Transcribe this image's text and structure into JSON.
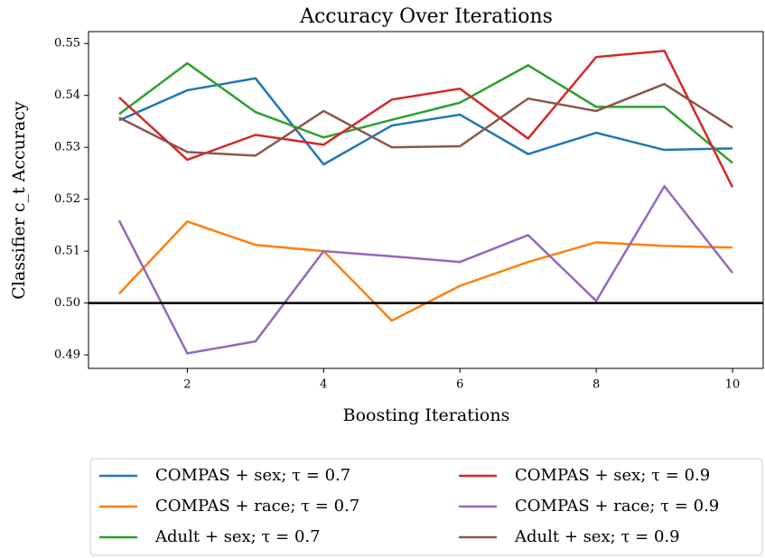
{
  "chart_data": {
    "type": "line",
    "title": "Accuracy Over Iterations",
    "xlabel": "Boosting Iterations",
    "ylabel": "Classifier c_t Accuracy",
    "x": [
      1,
      2,
      3,
      4,
      5,
      6,
      7,
      8,
      9,
      10
    ],
    "xlim": [
      0.55,
      10.45
    ],
    "xticks": [
      2,
      4,
      6,
      8,
      10
    ],
    "ylim": [
      0.4874,
      0.5523
    ],
    "yticks": [
      0.49,
      {
        "value": 0.5,
        "label": "0.50"
      },
      0.51,
      0.52,
      0.53,
      0.54,
      0.55
    ],
    "hline": 0.5,
    "hline_color": "#000000",
    "legend": "below",
    "grid": false,
    "series": [
      {
        "name": "COMPAS + sex; τ = 0.7",
        "color": "#1f77b4",
        "values": [
          0.5352,
          0.541,
          0.5433,
          0.5267,
          0.5342,
          0.5363,
          0.5287,
          0.5328,
          0.5295,
          0.5298
        ]
      },
      {
        "name": "COMPAS + race; τ = 0.7",
        "color": "#ff7f0e",
        "values": [
          0.5018,
          0.5157,
          0.5112,
          0.51,
          0.4966,
          0.5033,
          0.5079,
          0.5117,
          0.511,
          0.5107
        ]
      },
      {
        "name": "Adult + sex; τ = 0.7",
        "color": "#2ca02c",
        "values": [
          0.5364,
          0.5462,
          0.5368,
          0.5319,
          0.5353,
          0.5386,
          0.5458,
          0.5378,
          0.5378,
          0.527
        ]
      },
      {
        "name": "COMPAS + sex; τ = 0.9",
        "color": "#d62728",
        "values": [
          0.5396,
          0.5276,
          0.5324,
          0.5305,
          0.5392,
          0.5413,
          0.5317,
          0.5474,
          0.5486,
          0.5223
        ]
      },
      {
        "name": "COMPAS + race; τ = 0.9",
        "color": "#9467bd",
        "values": [
          0.5159,
          0.4903,
          0.4926,
          0.51,
          0.509,
          0.5079,
          0.5131,
          0.5004,
          0.5225,
          0.5058
        ]
      },
      {
        "name": "Adult + sex; τ = 0.9",
        "color": "#8c564b",
        "values": [
          0.5357,
          0.5291,
          0.5284,
          0.537,
          0.53,
          0.5302,
          0.5394,
          0.537,
          0.5422,
          0.5338
        ]
      }
    ]
  }
}
